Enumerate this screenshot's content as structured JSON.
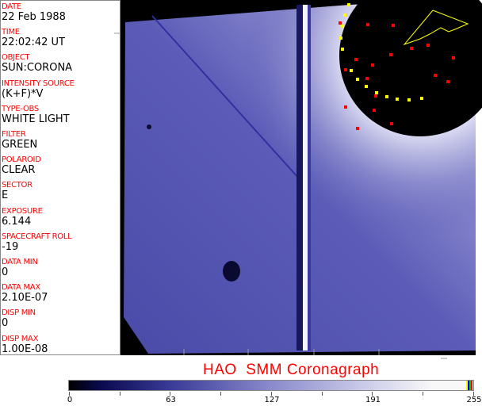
{
  "info_panel": [
    {
      "label": "DATE",
      "value": "22 Feb 1988"
    },
    {
      "label": "TIME",
      "value": "22:02:42 UT"
    },
    {
      "label": "OBJECT",
      "value": "SUN:CORONA"
    },
    {
      "label": "INTENSITY SOURCE",
      "value": "(K+F)*V"
    },
    {
      "label": "TYPE-OBS",
      "value": "WHITE LIGHT"
    },
    {
      "label": "FILTER",
      "value": "GREEN"
    },
    {
      "label": "POLAROID",
      "value": "CLEAR"
    },
    {
      "label": "SECTOR",
      "value": "E"
    },
    {
      "label": "EXPOSURE",
      "value": "6.144"
    },
    {
      "label": "SPACECRAFT ROLL",
      "value": "-19"
    },
    {
      "label": "DATA MIN",
      "value": "0"
    },
    {
      "label": "DATA MAX",
      "value": "2.10E-07"
    },
    {
      "label": "DISP MIN",
      "value": "0"
    },
    {
      "label": "DISP MAX",
      "value": "1.00E-08"
    }
  ],
  "title": "HAO  SMM Coronagraph",
  "colorbar": {
    "ticks": [
      "0",
      "63",
      "127",
      "191",
      "255"
    ],
    "colors": {
      "dark": "#000000",
      "mid": "#8a8acc",
      "light": "#f8f8f8",
      "accent": "#ff0000"
    }
  }
}
